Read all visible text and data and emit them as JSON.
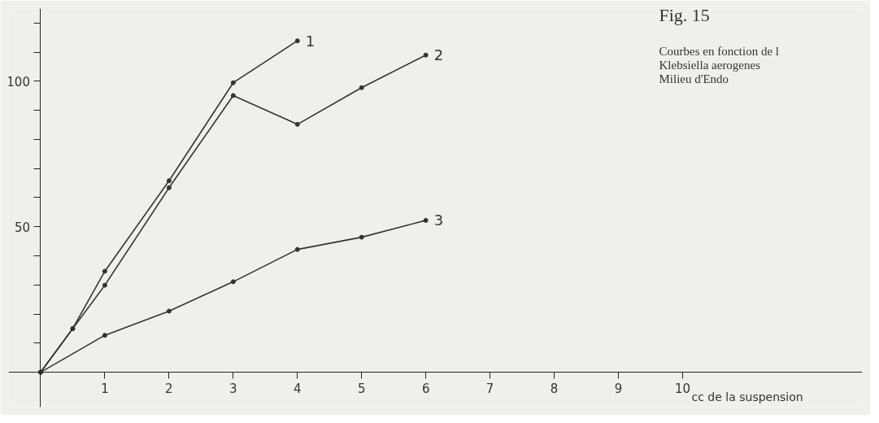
{
  "chart_data": {
    "type": "line",
    "title": "Fig. 15",
    "xlabel": "cc de la suspension",
    "annotations": [
      "Courbes en fonction de l",
      "Klebsiella aerogenes",
      "Milieu d'Endo"
    ],
    "series": [
      {
        "name": "1",
        "color": "#333333",
        "x": [
          0,
          0.5,
          1,
          2,
          3,
          4
        ],
        "values": [
          0,
          15,
          34.7,
          65.8,
          99.5,
          113.9
        ]
      },
      {
        "name": "2",
        "color": "#333333",
        "x": [
          0,
          0.5,
          1,
          2,
          3,
          4,
          5,
          6
        ],
        "values": [
          0,
          15,
          29.9,
          63.4,
          95.1,
          85.2,
          97.8,
          109
        ]
      },
      {
        "name": "3",
        "color": "#333333",
        "x": [
          0,
          1,
          2,
          3,
          4,
          5,
          6
        ],
        "values": [
          0,
          12.7,
          21,
          31.1,
          42.2,
          46.4,
          52.2
        ]
      }
    ],
    "xlim": [
      -0.5,
      12.8
    ],
    "ylim": [
      -12,
      125
    ],
    "xticks": [
      1,
      2,
      3,
      4,
      5,
      6,
      7,
      8,
      9,
      10
    ],
    "yticks": [
      {
        "value": 10,
        "label": null
      },
      {
        "value": 20,
        "label": null
      },
      {
        "value": 30,
        "label": null
      },
      {
        "value": 40,
        "label": null
      },
      50,
      {
        "value": 60,
        "label": null
      },
      {
        "value": 70,
        "label": null
      },
      {
        "value": 80,
        "label": null
      },
      {
        "value": 90,
        "label": null
      },
      100,
      {
        "value": 110,
        "label": null
      },
      {
        "value": 120,
        "label": null
      }
    ],
    "grid": false,
    "marker": "circle",
    "line_style": "solid"
  }
}
